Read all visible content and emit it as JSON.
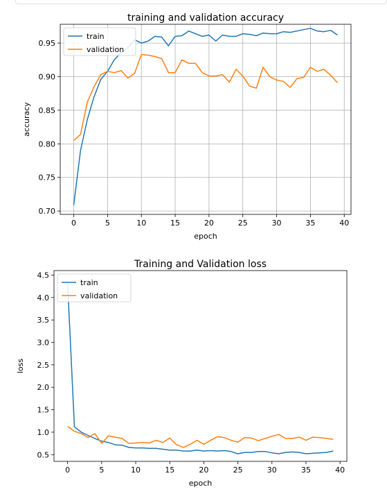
{
  "chart_data": [
    {
      "type": "line",
      "title": "training and validation accuracy",
      "xlabel": "epoch",
      "ylabel": "accuracy",
      "xlim": [
        -2,
        41
      ],
      "ylim": [
        0.695,
        0.978
      ],
      "grid": true,
      "legend_position": "upper-left",
      "x": [
        0,
        1,
        2,
        3,
        4,
        5,
        6,
        7,
        8,
        9,
        10,
        11,
        12,
        13,
        14,
        15,
        16,
        17,
        18,
        19,
        20,
        21,
        22,
        23,
        24,
        25,
        26,
        27,
        28,
        29,
        30,
        31,
        32,
        33,
        34,
        35,
        36,
        37,
        38,
        39
      ],
      "xticks": [
        0,
        5,
        10,
        15,
        20,
        25,
        30,
        35,
        40
      ],
      "yticks": [
        0.7,
        0.75,
        0.8,
        0.85,
        0.9,
        0.95
      ],
      "xtick_labels": [
        "0",
        "5",
        "10",
        "15",
        "20",
        "25",
        "30",
        "35",
        "40"
      ],
      "ytick_labels": [
        "0.70",
        "0.75",
        "0.80",
        "0.85",
        "0.90",
        "0.95"
      ],
      "series": [
        {
          "name": "train",
          "color": "#1f77b4",
          "values": [
            0.709,
            0.79,
            0.836,
            0.87,
            0.896,
            0.908,
            0.925,
            0.936,
            0.943,
            0.955,
            0.95,
            0.953,
            0.96,
            0.959,
            0.946,
            0.96,
            0.961,
            0.968,
            0.964,
            0.96,
            0.962,
            0.953,
            0.962,
            0.96,
            0.96,
            0.964,
            0.963,
            0.961,
            0.965,
            0.964,
            0.964,
            0.967,
            0.966,
            0.968,
            0.97,
            0.972,
            0.968,
            0.967,
            0.969,
            0.962
          ]
        },
        {
          "name": "validation",
          "color": "#ff7f0e",
          "values": [
            0.805,
            0.814,
            0.862,
            0.885,
            0.903,
            0.908,
            0.906,
            0.909,
            0.898,
            0.905,
            0.933,
            0.932,
            0.93,
            0.927,
            0.906,
            0.906,
            0.925,
            0.92,
            0.92,
            0.906,
            0.901,
            0.901,
            0.903,
            0.892,
            0.911,
            0.901,
            0.886,
            0.883,
            0.914,
            0.9,
            0.895,
            0.893,
            0.884,
            0.897,
            0.899,
            0.914,
            0.908,
            0.911,
            0.902,
            0.891
          ]
        }
      ]
    },
    {
      "type": "line",
      "title": "Training and Validation loss",
      "xlabel": "epoch",
      "ylabel": "loss",
      "xlim": [
        -2,
        41
      ],
      "ylim": [
        0.35,
        4.6
      ],
      "grid": false,
      "legend_position": "upper-left",
      "x": [
        0,
        1,
        2,
        3,
        4,
        5,
        6,
        7,
        8,
        9,
        10,
        11,
        12,
        13,
        14,
        15,
        16,
        17,
        18,
        19,
        20,
        21,
        22,
        23,
        24,
        25,
        26,
        27,
        28,
        29,
        30,
        31,
        32,
        33,
        34,
        35,
        36,
        37,
        38,
        39
      ],
      "xticks": [
        0,
        5,
        10,
        15,
        20,
        25,
        30,
        35,
        40
      ],
      "yticks": [
        0.5,
        1.0,
        1.5,
        2.0,
        2.5,
        3.0,
        3.5,
        4.0,
        4.5
      ],
      "xtick_labels": [
        "0",
        "5",
        "10",
        "15",
        "20",
        "25",
        "30",
        "35",
        "40"
      ],
      "ytick_labels": [
        "0.5",
        "1.0",
        "1.5",
        "2.0",
        "2.5",
        "3.0",
        "3.5",
        "4.0",
        "4.5"
      ],
      "series": [
        {
          "name": "train",
          "color": "#1f77b4",
          "values": [
            4.3,
            1.12,
            1.0,
            0.93,
            0.86,
            0.8,
            0.77,
            0.72,
            0.71,
            0.66,
            0.65,
            0.65,
            0.64,
            0.64,
            0.62,
            0.6,
            0.6,
            0.58,
            0.58,
            0.6,
            0.58,
            0.59,
            0.58,
            0.59,
            0.57,
            0.52,
            0.55,
            0.55,
            0.57,
            0.57,
            0.54,
            0.52,
            0.55,
            0.56,
            0.55,
            0.52,
            0.53,
            0.54,
            0.55,
            0.58
          ]
        },
        {
          "name": "validation",
          "color": "#ff7f0e",
          "values": [
            1.13,
            1.02,
            0.97,
            0.88,
            0.97,
            0.75,
            0.92,
            0.89,
            0.86,
            0.75,
            0.76,
            0.77,
            0.76,
            0.82,
            0.77,
            0.87,
            0.72,
            0.66,
            0.73,
            0.82,
            0.73,
            0.82,
            0.9,
            0.88,
            0.82,
            0.78,
            0.88,
            0.87,
            0.81,
            0.86,
            0.91,
            0.95,
            0.86,
            0.86,
            0.89,
            0.82,
            0.89,
            0.88,
            0.86,
            0.84
          ]
        }
      ]
    }
  ]
}
